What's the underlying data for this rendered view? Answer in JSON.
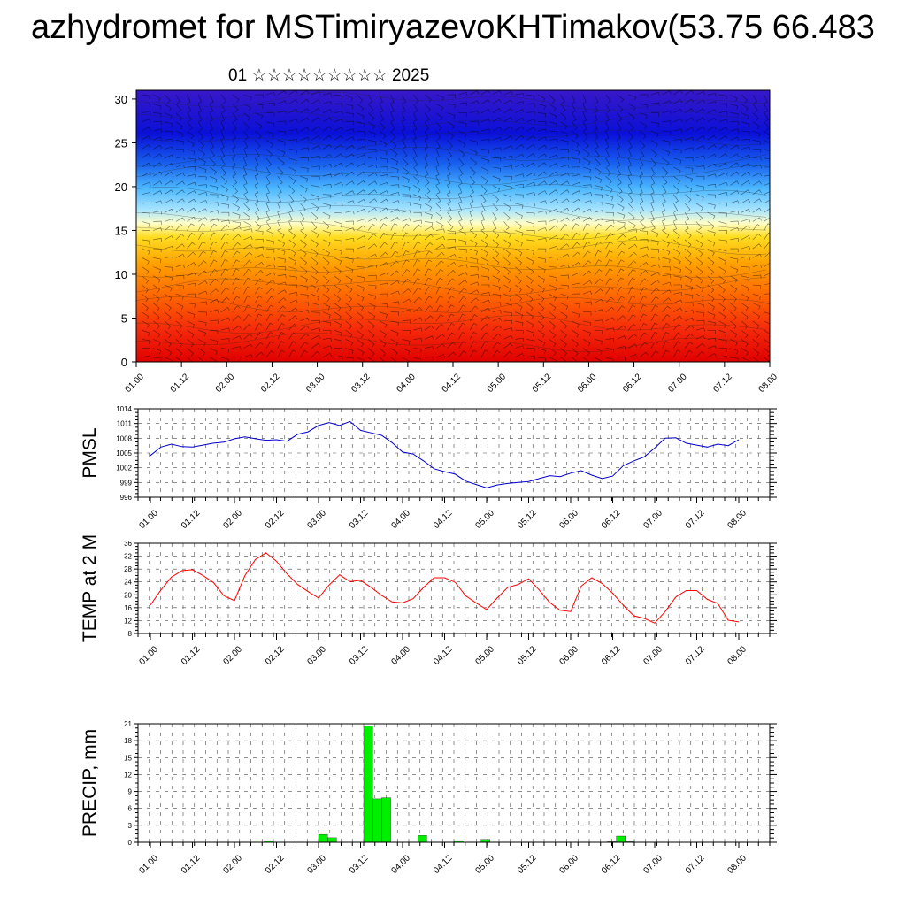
{
  "title": "azhydromet for MSTimiryazevoKHTimakov(53.75 66.483",
  "subtitle": "01 ☆☆☆☆☆☆☆☆☆ 2025",
  "time_ticks": [
    "01.00",
    "01.12",
    "02.00",
    "02.12",
    "03.00",
    "03.12",
    "04.00",
    "04.12",
    "05.00",
    "05.12",
    "06.00",
    "06.12",
    "07.00",
    "07.12",
    "08.00"
  ],
  "chart_data": [
    {
      "type": "heatmap",
      "title": "",
      "xlabel": "",
      "ylabel": "",
      "ylim": [
        0,
        31
      ],
      "yticks": [
        0,
        5,
        10,
        15,
        20,
        25,
        30
      ],
      "x": [
        "01.00",
        "01.12",
        "02.00",
        "02.12",
        "03.00",
        "03.12",
        "04.00",
        "04.12",
        "05.00",
        "05.12",
        "06.00",
        "06.12",
        "07.00",
        "07.12",
        "08.00"
      ],
      "description_levels": [
        0,
        5,
        10,
        15,
        20,
        25,
        30
      ],
      "overlay": "wind barbs"
    },
    {
      "type": "line",
      "ylabel": "PMSL",
      "ylim": [
        996,
        1014
      ],
      "yticks": [
        996,
        999,
        1002,
        1005,
        1008,
        1011,
        1014
      ],
      "series": [
        {
          "values": [
            1004.5,
            1006.2,
            1006.8,
            1006.3,
            1006.2,
            1006.6,
            1007.0,
            1007.2,
            1007.9,
            1008.3,
            1007.9,
            1007.6,
            1007.7,
            1007.4,
            1008.8,
            1009.3,
            1010.6,
            1011.2,
            1010.6,
            1011.4,
            1009.6,
            1009.1,
            1008.6,
            1007.1,
            1005.2,
            1004.8,
            1003.4,
            1001.8,
            1001.2,
            1000.7,
            999.3,
            998.6,
            997.9,
            998.5,
            998.8,
            999.0,
            999.2,
            999.8,
            1000.4,
            1000.2,
            1000.9,
            1001.4,
            1000.5,
            999.8,
            1000.3,
            1002.4,
            1003.4,
            1004.2,
            1006.0,
            1008.0,
            1008.1,
            1007.0,
            1006.6,
            1006.2,
            1006.8,
            1006.5,
            1007.7
          ]
        }
      ],
      "color": "#0000cc"
    },
    {
      "type": "line",
      "ylabel": "TEMP at 2 M",
      "ylim": [
        8,
        36
      ],
      "yticks": [
        8,
        12,
        16,
        20,
        24,
        28,
        32,
        36
      ],
      "series": [
        {
          "values": [
            16.8,
            21.5,
            25.5,
            27.5,
            27.8,
            26.0,
            23.8,
            19.7,
            18.2,
            26.0,
            31.0,
            33.0,
            30.4,
            26.5,
            23.2,
            21.0,
            19.0,
            23.0,
            26.2,
            24.1,
            24.5,
            22.3,
            19.8,
            17.8,
            17.5,
            18.8,
            22.3,
            25.3,
            25.3,
            23.9,
            19.7,
            17.5,
            15.4,
            19.0,
            22.3,
            23.2,
            25.0,
            21.5,
            17.6,
            15.2,
            14.8,
            22.7,
            25.3,
            23.5,
            20.5,
            16.8,
            13.5,
            12.7,
            11.2,
            14.8,
            19.3,
            21.3,
            21.3,
            18.6,
            17.3,
            12.1,
            11.6
          ]
        }
      ],
      "color": "#ff0000"
    },
    {
      "type": "bar",
      "ylabel": "PRECIP, mm",
      "ylim": [
        0,
        21
      ],
      "yticks": [
        0,
        3,
        6,
        9,
        12,
        15,
        18,
        21
      ],
      "values": [
        0,
        0,
        0,
        0,
        0,
        0,
        0,
        0,
        0,
        0,
        0,
        0,
        0,
        0,
        0.3,
        0,
        0,
        0,
        0,
        0,
        1.4,
        0.8,
        0,
        0,
        0,
        20.6,
        7.7,
        7.9,
        0,
        0,
        0,
        1.2,
        0,
        0,
        0,
        0.3,
        0,
        0,
        0.5,
        0,
        0,
        0,
        0,
        0,
        0,
        0,
        0,
        0,
        0,
        0,
        0,
        0,
        0.1,
        1.1,
        0.1,
        0,
        0,
        0,
        0,
        0,
        0,
        0,
        0,
        0,
        0,
        0,
        0,
        0,
        0,
        0
      ],
      "color": "#00ee00"
    }
  ]
}
